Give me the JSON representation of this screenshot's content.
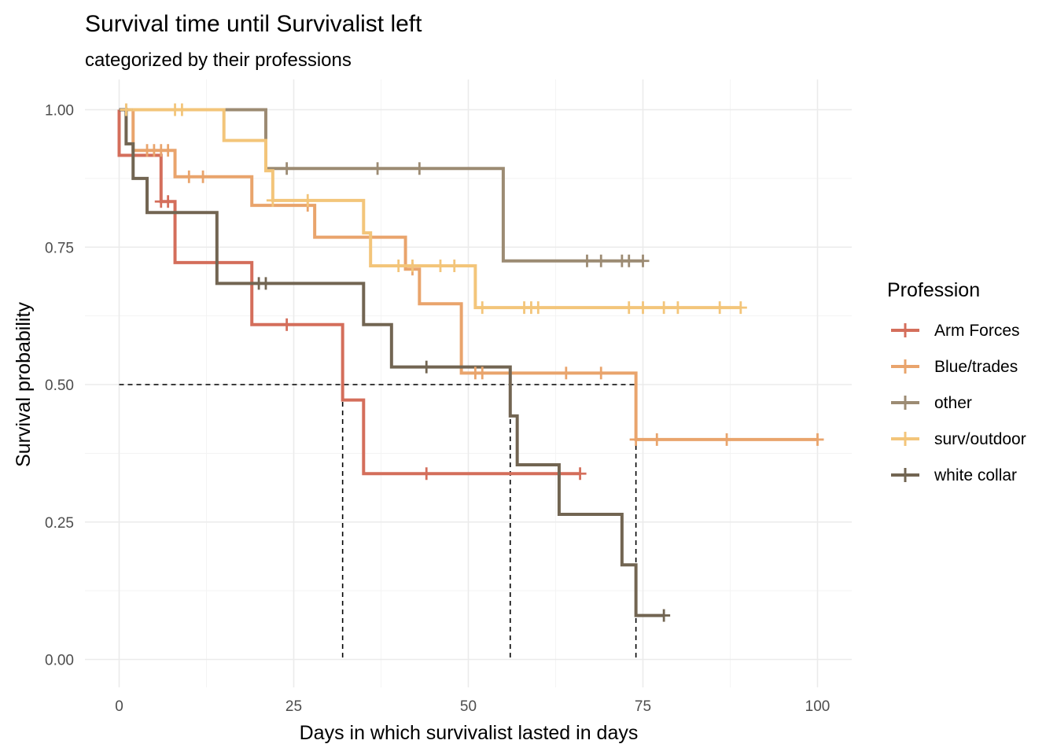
{
  "chart_data": {
    "type": "line",
    "title": "Survival time until Survivalist left",
    "subtitle": "categorized by their professions",
    "xlabel": "Days in which survivalist lasted in days",
    "ylabel": "Survival probability",
    "xlim": [
      -3,
      105
    ],
    "ylim": [
      -0.04,
      1.05
    ],
    "x_ticks": [
      0,
      25,
      50,
      75,
      100
    ],
    "x_tick_labels": [
      "0",
      "25",
      "50",
      "75",
      "100"
    ],
    "y_ticks": [
      0,
      0.25,
      0.5,
      0.75,
      1
    ],
    "y_tick_labels": [
      "0.00",
      "0.25",
      "0.50",
      "0.75",
      "1.00"
    ],
    "grid": true,
    "legend": {
      "title": "Profession",
      "position": "right"
    },
    "median_line": {
      "y": 0.5,
      "x": [
        32,
        56,
        74
      ]
    },
    "series": [
      {
        "name": "Arm Forces",
        "color": "#d46e5b",
        "steps": [
          [
            0,
            1.0
          ],
          [
            0,
            0.917
          ],
          [
            6,
            0.833
          ],
          [
            8,
            0.722
          ],
          [
            19,
            0.609
          ],
          [
            32,
            0.472
          ],
          [
            35,
            0.338
          ],
          [
            66,
            0.338
          ]
        ],
        "censored": [
          [
            6,
            0.833
          ],
          [
            7,
            0.833
          ],
          [
            24,
            0.609
          ],
          [
            44,
            0.338
          ],
          [
            66,
            0.338
          ]
        ]
      },
      {
        "name": "Blue/trades",
        "color": "#e9a46c",
        "steps": [
          [
            0,
            1.0
          ],
          [
            2,
            0.926
          ],
          [
            8,
            0.878
          ],
          [
            19,
            0.826
          ],
          [
            28,
            0.768
          ],
          [
            41,
            0.71
          ],
          [
            43,
            0.647
          ],
          [
            49,
            0.521
          ],
          [
            74,
            0.521
          ],
          [
            74,
            0.4
          ],
          [
            100,
            0.4
          ]
        ],
        "censored": [
          [
            4,
            0.926
          ],
          [
            5,
            0.926
          ],
          [
            6,
            0.926
          ],
          [
            7,
            0.926
          ],
          [
            10,
            0.878
          ],
          [
            12,
            0.878
          ],
          [
            27,
            0.826
          ],
          [
            42,
            0.71
          ],
          [
            51,
            0.521
          ],
          [
            52,
            0.521
          ],
          [
            64,
            0.521
          ],
          [
            69,
            0.521
          ],
          [
            74,
            0.4
          ],
          [
            77,
            0.4
          ],
          [
            87,
            0.4
          ],
          [
            100,
            0.4
          ]
        ]
      },
      {
        "name": "other",
        "color": "#9c8b73",
        "steps": [
          [
            0,
            1.0
          ],
          [
            21,
            1.0
          ],
          [
            21,
            0.893
          ],
          [
            55,
            0.893
          ],
          [
            55,
            0.725
          ],
          [
            75,
            0.725
          ]
        ],
        "censored": [
          [
            1,
            1.0
          ],
          [
            24,
            0.893
          ],
          [
            37,
            0.893
          ],
          [
            43,
            0.893
          ],
          [
            67,
            0.725
          ],
          [
            69,
            0.725
          ],
          [
            72,
            0.725
          ],
          [
            73,
            0.725
          ],
          [
            75,
            0.725
          ]
        ]
      },
      {
        "name": "surv/outdoor",
        "color": "#f3c57a",
        "steps": [
          [
            0,
            1.0
          ],
          [
            15,
            1.0
          ],
          [
            15,
            0.944
          ],
          [
            21,
            0.889
          ],
          [
            22,
            0.835
          ],
          [
            35,
            0.776
          ],
          [
            36,
            0.716
          ],
          [
            51,
            0.64
          ],
          [
            89,
            0.64
          ]
        ],
        "censored": [
          [
            1,
            1.0
          ],
          [
            8,
            1.0
          ],
          [
            9,
            1.0
          ],
          [
            22,
            0.835
          ],
          [
            27,
            0.835
          ],
          [
            40,
            0.716
          ],
          [
            42,
            0.716
          ],
          [
            46,
            0.716
          ],
          [
            48,
            0.716
          ],
          [
            52,
            0.64
          ],
          [
            58,
            0.64
          ],
          [
            59,
            0.64
          ],
          [
            60,
            0.64
          ],
          [
            73,
            0.64
          ],
          [
            75,
            0.64
          ],
          [
            78,
            0.64
          ],
          [
            80,
            0.64
          ],
          [
            86,
            0.64
          ],
          [
            89,
            0.64
          ]
        ]
      },
      {
        "name": "white collar",
        "color": "#726552",
        "steps": [
          [
            0,
            1.0
          ],
          [
            1,
            0.938
          ],
          [
            2,
            0.875
          ],
          [
            4,
            0.813
          ],
          [
            14,
            0.684
          ],
          [
            35,
            0.609
          ],
          [
            39,
            0.532
          ],
          [
            56,
            0.532
          ],
          [
            56,
            0.443
          ],
          [
            57,
            0.354
          ],
          [
            63,
            0.264
          ],
          [
            72,
            0.172
          ],
          [
            74,
            0.08
          ],
          [
            78,
            0.08
          ]
        ],
        "censored": [
          [
            20,
            0.684
          ],
          [
            21,
            0.684
          ],
          [
            44,
            0.532
          ],
          [
            78,
            0.08
          ]
        ]
      }
    ]
  }
}
